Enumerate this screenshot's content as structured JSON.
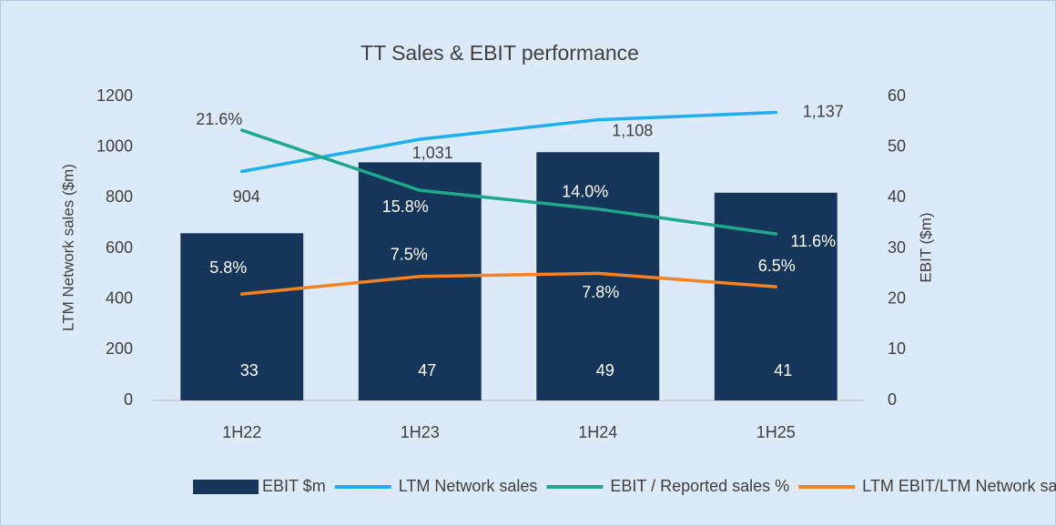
{
  "chart_data": {
    "type": "bar",
    "title": "TT Sales & EBIT performance",
    "categories": [
      "1H22",
      "1H23",
      "1H24",
      "1H25"
    ],
    "ylabel": "LTM Network sales ($m)",
    "y2label": "EBIT ($m)",
    "ylim": [
      0,
      1200
    ],
    "yticks": [
      0,
      200,
      400,
      600,
      800,
      1000,
      1200
    ],
    "y2lim": [
      0,
      60
    ],
    "y2ticks": [
      0,
      10,
      20,
      30,
      40,
      50,
      60
    ],
    "y3lim": [
      -4.45,
      24.85
    ],
    "grid": false,
    "legend": "bottom",
    "series": [
      {
        "name": "EBIT $m",
        "type": "bar",
        "axis": "y2",
        "color": "#15355a",
        "values": [
          33,
          47,
          49,
          41
        ]
      },
      {
        "name": "LTM Network sales",
        "type": "line",
        "axis": "y",
        "color": "#1cb0ee",
        "values": [
          904,
          1031,
          1108,
          1137
        ],
        "value_labels": [
          "904",
          "1,031",
          "1,108",
          "1,137"
        ]
      },
      {
        "name": "EBIT / Reported sales %",
        "type": "line",
        "axis": "y3",
        "color": "#1ea98a",
        "values": [
          21.6,
          15.8,
          14.0,
          11.6
        ],
        "value_labels": [
          "21.6%",
          "15.8%",
          "14.0%",
          "11.6%"
        ]
      },
      {
        "name": "LTM EBIT/LTM Network sales %",
        "type": "line",
        "axis": "y3",
        "color": "#f5821f",
        "values": [
          5.8,
          7.5,
          7.8,
          6.5
        ],
        "value_labels": [
          "5.8%",
          "7.5%",
          "7.8%",
          "6.5%"
        ]
      }
    ]
  }
}
